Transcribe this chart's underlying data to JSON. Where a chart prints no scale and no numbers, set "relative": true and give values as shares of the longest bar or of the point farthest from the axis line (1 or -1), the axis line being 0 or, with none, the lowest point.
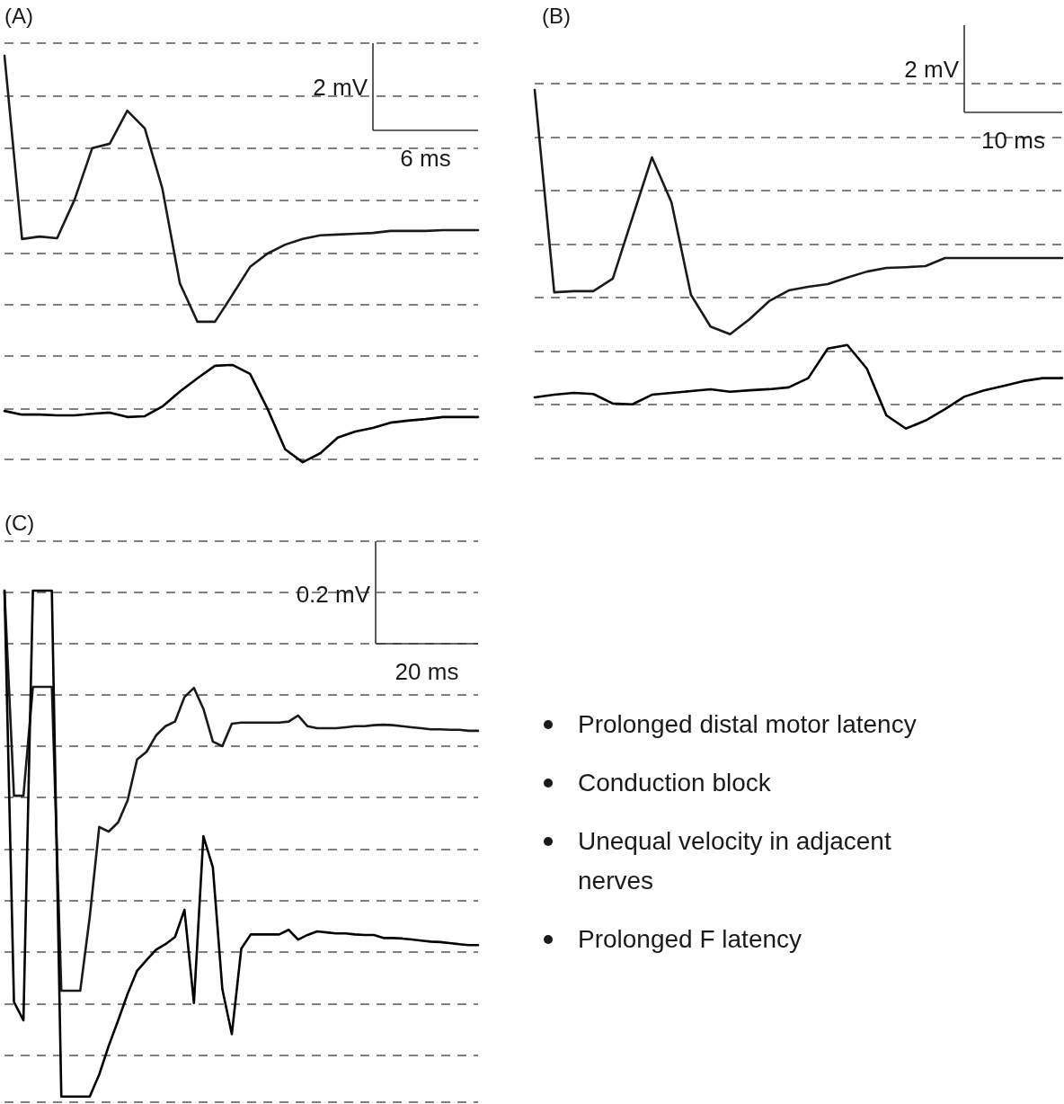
{
  "chart_data": [
    {
      "type": "line",
      "title": "(A)",
      "relative": true,
      "grid": "y",
      "marker": "none",
      "line_style": "solid",
      "annotations": [
        "2 mV",
        "6 ms"
      ],
      "categories": [
        null,
        null,
        null,
        null,
        null,
        null,
        null,
        null,
        null,
        null,
        null,
        null,
        null,
        null,
        null,
        null,
        null,
        null,
        null,
        null,
        null,
        null,
        null,
        null,
        null,
        null,
        null,
        null
      ],
      "series": [
        {
          "color": "#1a1a1a",
          "values": [
            1.0,
            0.546,
            0.552,
            0.548,
            0.644,
            0.771,
            0.782,
            0.864,
            0.82,
            0.671,
            0.436,
            0.341,
            0.341,
            0.408,
            0.477,
            0.51,
            0.532,
            0.546,
            0.555,
            0.557,
            0.559,
            0.561,
            0.566,
            0.566,
            0.566,
            0.568,
            0.568,
            0.568
          ]
        },
        {
          "color": "#000000",
          "values": [
            0.12,
            0.111,
            0.111,
            0.109,
            0.109,
            0.113,
            0.116,
            0.105,
            0.107,
            0.131,
            0.168,
            0.201,
            0.232,
            0.234,
            0.212,
            0.125,
            0.025,
            -0.007,
            0.015,
            0.054,
            0.069,
            0.078,
            0.091,
            0.096,
            0.1,
            0.105,
            0.105,
            0.105
          ]
        }
      ]
    },
    {
      "type": "line",
      "title": "(B)",
      "relative": true,
      "grid": "y",
      "marker": "none",
      "line_style": "solid",
      "annotations": [
        "2 mV",
        "10 ms"
      ],
      "categories": [
        null,
        null,
        null,
        null,
        null,
        null,
        null,
        null,
        null,
        null,
        null,
        null,
        null,
        null,
        null,
        null,
        null,
        null,
        null,
        null,
        null,
        null,
        null,
        null,
        null,
        null,
        null,
        null
      ],
      "series": [
        {
          "color": "#1a1a1a",
          "values": [
            1.0,
            0.451,
            0.454,
            0.454,
            0.488,
            0.653,
            0.817,
            0.695,
            0.444,
            0.358,
            0.337,
            0.378,
            0.427,
            0.456,
            0.466,
            0.473,
            0.491,
            0.507,
            0.517,
            0.519,
            0.522,
            0.544,
            0.544,
            0.544,
            0.544,
            0.544,
            0.544,
            0.544
          ]
        },
        {
          "color": "#000000",
          "values": [
            0.166,
            0.173,
            0.178,
            0.175,
            0.149,
            0.147,
            0.173,
            0.178,
            0.183,
            0.188,
            0.181,
            0.185,
            0.188,
            0.193,
            0.218,
            0.298,
            0.308,
            0.244,
            0.117,
            0.081,
            0.103,
            0.134,
            0.168,
            0.185,
            0.197,
            0.21,
            0.218,
            0.218
          ]
        }
      ]
    },
    {
      "type": "line",
      "title": "(C)",
      "relative": true,
      "grid": "y",
      "marker": "none",
      "line_style": "solid",
      "annotations": [
        "0.2 mV",
        "20 ms"
      ],
      "categories": [
        null,
        null,
        null,
        null,
        null,
        null,
        null,
        null,
        null,
        null,
        null,
        null,
        null,
        null,
        null,
        null,
        null,
        null,
        null,
        null,
        null,
        null,
        null,
        null,
        null,
        null,
        null,
        null,
        null,
        null,
        null,
        null,
        null,
        null,
        null,
        null,
        null,
        null,
        null,
        null,
        null,
        null,
        null,
        null,
        null,
        null,
        null,
        null,
        null,
        null,
        null
      ],
      "series": [
        {
          "color": "#1a1a1a",
          "values": [
            1.0,
            0.599,
            0.599,
            0.812,
            0.812,
            0.812,
            0.218,
            0.218,
            0.218,
            0.362,
            0.538,
            0.529,
            0.547,
            0.59,
            0.67,
            0.685,
            0.717,
            0.735,
            0.744,
            0.792,
            0.81,
            0.769,
            0.705,
            0.696,
            0.74,
            0.742,
            0.742,
            0.742,
            0.742,
            0.742,
            0.744,
            0.756,
            0.735,
            0.731,
            0.731,
            0.731,
            0.733,
            0.735,
            0.735,
            0.737,
            0.738,
            0.737,
            0.735,
            0.733,
            0.731,
            0.729,
            0.729,
            0.728,
            0.728,
            0.726,
            0.726
          ]
        },
        {
          "color": "#000000",
          "values": [
            1.0,
            0.196,
            0.16,
            1.0,
            1.0,
            1.0,
            0.011,
            0.011,
            0.011,
            0.011,
            0.054,
            0.11,
            0.16,
            0.212,
            0.257,
            0.278,
            0.298,
            0.309,
            0.323,
            0.376,
            0.194,
            0.52,
            0.459,
            0.221,
            0.133,
            0.3,
            0.328,
            0.328,
            0.328,
            0.328,
            0.337,
            0.318,
            0.327,
            0.334,
            0.332,
            0.33,
            0.33,
            0.328,
            0.327,
            0.327,
            0.321,
            0.321,
            0.32,
            0.318,
            0.316,
            0.314,
            0.313,
            0.311,
            0.309,
            0.307,
            0.307
          ]
        }
      ]
    },
    {
      "type": "other",
      "annotations": [
        "Prolonged distal motor latency",
        "Conduction block",
        "Unequal velocity in adjacent nerves",
        "Prolonged F latency"
      ]
    }
  ]
}
